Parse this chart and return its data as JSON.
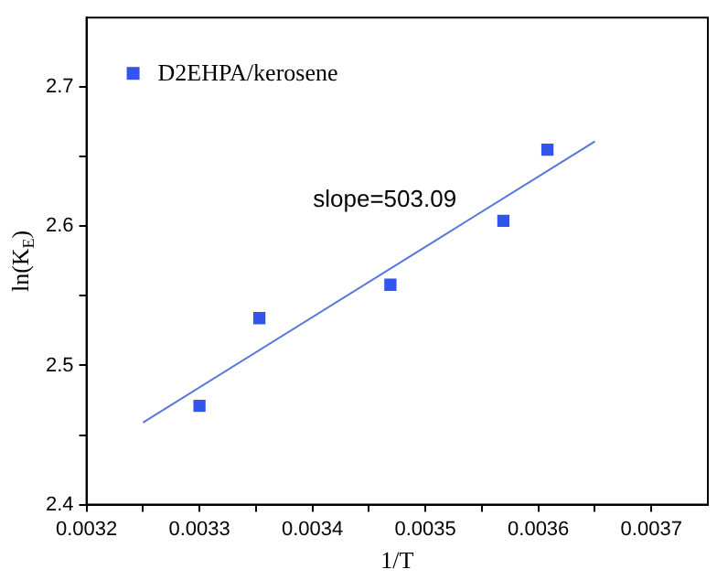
{
  "chart_data": {
    "type": "scatter",
    "xlabel": "1/T",
    "ylabel": "ln(K$_{E}$)",
    "xlim": [
      0.0032,
      0.00375
    ],
    "ylim": [
      2.4,
      2.75
    ],
    "xticks": [
      0.0032,
      {
        "value": 0.00325,
        "label": null
      },
      0.0033,
      {
        "value": 0.00335,
        "label": null
      },
      0.0034,
      {
        "value": 0.00345,
        "label": null
      },
      0.0035,
      {
        "value": 0.00355,
        "label": null
      },
      0.0036,
      {
        "value": 0.00365,
        "label": null
      },
      0.0037
    ],
    "yticks": [
      2.4,
      {
        "value": 2.45,
        "label": null
      },
      2.5,
      {
        "value": 2.55,
        "label": null
      },
      2.6,
      {
        "value": 2.65,
        "label": null
      },
      2.7
    ],
    "grid": false,
    "legend": "top left",
    "series": [
      {
        "name": "D2EHPA/kerosene",
        "color": "#3355ee",
        "marker": "square",
        "x": [
          0.0033,
          0.003353,
          0.003469,
          0.003569,
          0.003608
        ],
        "values": [
          2.471,
          2.534,
          2.558,
          2.604,
          2.655
        ]
      },
      {
        "type": "line",
        "color": "#5577dd",
        "marker": "none",
        "x": [
          0.00325,
          0.00365
        ],
        "values": [
          2.459,
          2.661
        ]
      }
    ],
    "annotations": [
      "slope=503.09"
    ]
  }
}
